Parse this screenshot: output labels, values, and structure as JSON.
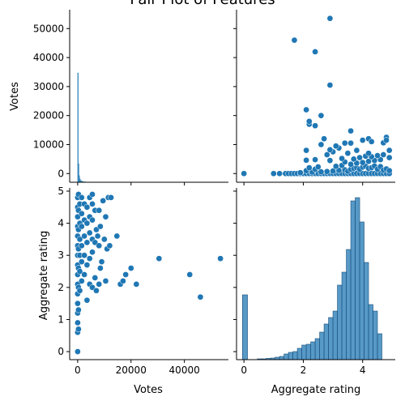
{
  "chart_data": {
    "type": "scatter",
    "title": "Pair Plot of Features",
    "variables": [
      "Votes",
      "Aggregate rating"
    ],
    "colors": {
      "marker": "#1f77b4",
      "axis": "#000000",
      "background": "#ffffff"
    },
    "grid": false,
    "axes": {
      "votes": {
        "label": "Votes",
        "range": [
          -3000,
          56500
        ],
        "ticks": [
          0,
          10000,
          20000,
          30000,
          40000,
          50000
        ],
        "tick_labels": [
          "0",
          "10000",
          "20000",
          "30000",
          "40000",
          "50000"
        ],
        "bottom_ticks": [
          0,
          20000,
          40000
        ],
        "bottom_tick_labels": [
          "0",
          "20000",
          "40000"
        ]
      },
      "rating": {
        "label": "Aggregate rating",
        "range": [
          -0.25,
          5.1
        ],
        "ticks": [
          0,
          1,
          2,
          3,
          4,
          5
        ],
        "tick_labels": [
          "0",
          "1",
          "2",
          "3",
          "4",
          "5"
        ],
        "bottom_ticks": [
          0,
          2,
          4
        ],
        "bottom_tick_labels": [
          "0",
          "2",
          "4"
        ]
      }
    },
    "panels": [
      {
        "id": "votes-votes",
        "kind": "histogram",
        "variable": "Votes",
        "bin_edges": [
          0,
          250,
          500,
          750,
          1000,
          1500,
          2000,
          3000
        ],
        "relative_heights": [
          1.0,
          0.17,
          0.06,
          0.03,
          0.015,
          0.008,
          0.004
        ]
      },
      {
        "id": "rating-votes",
        "kind": "scatter",
        "x_var": "Aggregate rating",
        "y_var": "Votes",
        "points": [
          [
            0,
            0
          ],
          [
            1.0,
            0
          ],
          [
            1.2,
            0
          ],
          [
            1.4,
            0
          ],
          [
            1.5,
            0
          ],
          [
            1.6,
            0
          ],
          [
            1.7,
            0
          ],
          [
            1.8,
            0
          ],
          [
            1.9,
            0
          ],
          [
            2.0,
            0
          ],
          [
            2.1,
            0
          ],
          [
            2.2,
            0
          ],
          [
            2.3,
            0
          ],
          [
            2.4,
            0
          ],
          [
            2.5,
            0
          ],
          [
            2.6,
            0
          ],
          [
            2.7,
            0
          ],
          [
            2.8,
            0
          ],
          [
            2.9,
            0
          ],
          [
            3.0,
            0
          ],
          [
            3.1,
            0
          ],
          [
            3.2,
            0
          ],
          [
            3.3,
            0
          ],
          [
            3.4,
            0
          ],
          [
            3.5,
            0
          ],
          [
            3.6,
            0
          ],
          [
            3.7,
            0
          ],
          [
            3.8,
            0
          ],
          [
            3.9,
            0
          ],
          [
            4.0,
            0
          ],
          [
            4.1,
            0
          ],
          [
            4.2,
            0
          ],
          [
            4.3,
            0
          ],
          [
            4.4,
            0
          ],
          [
            4.5,
            0
          ],
          [
            4.6,
            0
          ],
          [
            4.7,
            0
          ],
          [
            4.8,
            0
          ],
          [
            4.9,
            0
          ],
          [
            2.3,
            500
          ],
          [
            2.6,
            600
          ],
          [
            2.8,
            700
          ],
          [
            3.0,
            900
          ],
          [
            3.2,
            1100
          ],
          [
            3.4,
            1300
          ],
          [
            3.5,
            800
          ],
          [
            3.6,
            1500
          ],
          [
            3.7,
            1800
          ],
          [
            3.8,
            2000
          ],
          [
            3.9,
            1500
          ],
          [
            4.0,
            2200
          ],
          [
            4.1,
            2500
          ],
          [
            4.2,
            1800
          ],
          [
            4.3,
            2000
          ],
          [
            4.4,
            2600
          ],
          [
            4.5,
            1500
          ],
          [
            4.6,
            2400
          ],
          [
            4.7,
            1200
          ],
          [
            4.8,
            1600
          ],
          [
            4.9,
            1000
          ],
          [
            3.3,
            2800
          ],
          [
            3.6,
            3200
          ],
          [
            3.8,
            3600
          ],
          [
            4.0,
            3800
          ],
          [
            4.2,
            4200
          ],
          [
            4.4,
            4500
          ],
          [
            4.6,
            4800
          ],
          [
            3.1,
            2500
          ],
          [
            3.4,
            4000
          ],
          [
            3.7,
            5000
          ],
          [
            3.9,
            5500
          ],
          [
            4.1,
            6000
          ],
          [
            4.3,
            5800
          ],
          [
            4.5,
            6200
          ],
          [
            2.4,
            1500
          ],
          [
            2.1,
            1000
          ],
          [
            1.9,
            300
          ],
          [
            2.2,
            2000
          ],
          [
            2.5,
            2300
          ],
          [
            2.1,
            4600
          ],
          [
            2.4,
            4800
          ],
          [
            2.9,
            4500
          ],
          [
            3.3,
            5200
          ],
          [
            2.8,
            6500
          ],
          [
            3.0,
            7500
          ],
          [
            3.5,
            7000
          ],
          [
            2.9,
            8200
          ],
          [
            3.2,
            8800
          ],
          [
            3.8,
            8000
          ],
          [
            4.2,
            7000
          ],
          [
            4.7,
            6500
          ],
          [
            2.6,
            10000
          ],
          [
            2.7,
            12000
          ],
          [
            2.4,
            16500
          ],
          [
            2.2,
            17000
          ],
          [
            2.1,
            22000
          ],
          [
            2.2,
            18000
          ],
          [
            2.6,
            20000
          ],
          [
            2.1,
            8000
          ],
          [
            3.1,
            9500
          ],
          [
            3.4,
            10500
          ],
          [
            3.6,
            10500
          ],
          [
            3.6,
            14700
          ],
          [
            4.0,
            11500
          ],
          [
            4.2,
            12000
          ],
          [
            4.3,
            11000
          ],
          [
            4.7,
            10600
          ],
          [
            4.8,
            12500
          ],
          [
            4.8,
            11500
          ],
          [
            4.9,
            5500
          ],
          [
            4.9,
            8000
          ],
          [
            2.9,
            30500
          ],
          [
            2.4,
            42000
          ],
          [
            1.7,
            46000
          ],
          [
            2.9,
            53500
          ]
        ]
      },
      {
        "id": "votes-rating",
        "kind": "scatter",
        "x_var": "Votes",
        "y_var": "Aggregate rating",
        "points": [
          [
            0,
            0
          ],
          [
            0,
            0.6
          ],
          [
            0,
            0.9
          ],
          [
            0,
            1.2
          ],
          [
            0,
            1.5
          ],
          [
            0,
            1.8
          ],
          [
            0,
            2.1
          ],
          [
            0,
            2.4
          ],
          [
            0,
            2.7
          ],
          [
            0,
            3.0
          ],
          [
            0,
            3.3
          ],
          [
            0,
            3.6
          ],
          [
            0,
            3.9
          ],
          [
            0,
            4.2
          ],
          [
            0,
            4.5
          ],
          [
            0,
            4.8
          ],
          [
            300,
            0.7
          ],
          [
            300,
            1.3
          ],
          [
            300,
            2.0
          ],
          [
            300,
            2.6
          ],
          [
            300,
            3.2
          ],
          [
            300,
            3.8
          ],
          [
            300,
            4.4
          ],
          [
            300,
            4.9
          ],
          [
            800,
            1.9
          ],
          [
            800,
            2.5
          ],
          [
            800,
            3.0
          ],
          [
            800,
            3.5
          ],
          [
            800,
            4.0
          ],
          [
            800,
            4.6
          ],
          [
            1500,
            2.2
          ],
          [
            1500,
            2.8
          ],
          [
            1500,
            3.3
          ],
          [
            1500,
            3.9
          ],
          [
            1500,
            4.3
          ],
          [
            1500,
            4.8
          ],
          [
            2500,
            2.4
          ],
          [
            2500,
            3.0
          ],
          [
            2500,
            3.6
          ],
          [
            2500,
            4.1
          ],
          [
            2500,
            4.6
          ],
          [
            3500,
            1.6
          ],
          [
            3500,
            2.7
          ],
          [
            3500,
            3.4
          ],
          [
            3500,
            4.0
          ],
          [
            3500,
            4.5
          ],
          [
            4500,
            2.1
          ],
          [
            4500,
            2.9
          ],
          [
            4500,
            3.7
          ],
          [
            4500,
            4.2
          ],
          [
            4500,
            4.8
          ],
          [
            5500,
            2.0
          ],
          [
            5500,
            3.1
          ],
          [
            5500,
            3.5
          ],
          [
            5500,
            4.1
          ],
          [
            5500,
            4.6
          ],
          [
            5500,
            4.9
          ],
          [
            6500,
            2.3
          ],
          [
            6500,
            3.4
          ],
          [
            6500,
            4.4
          ],
          [
            7000,
            1.9
          ],
          [
            7000,
            3.8
          ],
          [
            7500,
            3.6
          ],
          [
            8000,
            2.1
          ],
          [
            8000,
            3.3
          ],
          [
            8000,
            4.4
          ],
          [
            8500,
            2.6
          ],
          [
            8500,
            3.9
          ],
          [
            9000,
            2.8
          ],
          [
            9500,
            4.7
          ],
          [
            10000,
            3.5
          ],
          [
            10500,
            2.2
          ],
          [
            10500,
            4.2
          ],
          [
            11000,
            3.2
          ],
          [
            11500,
            4.8
          ],
          [
            12000,
            3.3
          ],
          [
            12500,
            4.8
          ],
          [
            14700,
            3.6
          ],
          [
            16000,
            2.1
          ],
          [
            17000,
            2.2
          ],
          [
            18000,
            2.4
          ],
          [
            20000,
            2.6
          ],
          [
            22000,
            2.1
          ],
          [
            30500,
            2.9
          ],
          [
            42000,
            2.4
          ],
          [
            46000,
            1.7
          ],
          [
            53500,
            2.9
          ]
        ]
      },
      {
        "id": "rating-rating",
        "kind": "histogram",
        "variable": "Aggregate rating",
        "bins": [
          [
            -0.05,
            0.12,
            0.4
          ],
          [
            0.45,
            0.6,
            0.005
          ],
          [
            0.6,
            0.75,
            0.005
          ],
          [
            0.75,
            0.9,
            0.008
          ],
          [
            0.9,
            1.05,
            0.01
          ],
          [
            1.05,
            1.2,
            0.015
          ],
          [
            1.2,
            1.35,
            0.02
          ],
          [
            1.35,
            1.5,
            0.035
          ],
          [
            1.5,
            1.65,
            0.045
          ],
          [
            1.65,
            1.8,
            0.05
          ],
          [
            1.8,
            1.95,
            0.07
          ],
          [
            1.95,
            2.1,
            0.09
          ],
          [
            2.1,
            2.25,
            0.095
          ],
          [
            2.25,
            2.4,
            0.11
          ],
          [
            2.4,
            2.55,
            0.13
          ],
          [
            2.55,
            2.7,
            0.17
          ],
          [
            2.7,
            2.85,
            0.22
          ],
          [
            2.85,
            3.0,
            0.26
          ],
          [
            3.0,
            3.15,
            0.3
          ],
          [
            3.15,
            3.3,
            0.46
          ],
          [
            3.3,
            3.45,
            0.54
          ],
          [
            3.45,
            3.6,
            0.68
          ],
          [
            3.6,
            3.75,
            0.98
          ],
          [
            3.75,
            3.9,
            1.0
          ],
          [
            3.9,
            4.05,
            0.85
          ],
          [
            4.05,
            4.2,
            0.6
          ],
          [
            4.2,
            4.35,
            0.34
          ],
          [
            4.35,
            4.5,
            0.3
          ],
          [
            4.5,
            4.65,
            0.16
          ]
        ]
      }
    ]
  }
}
